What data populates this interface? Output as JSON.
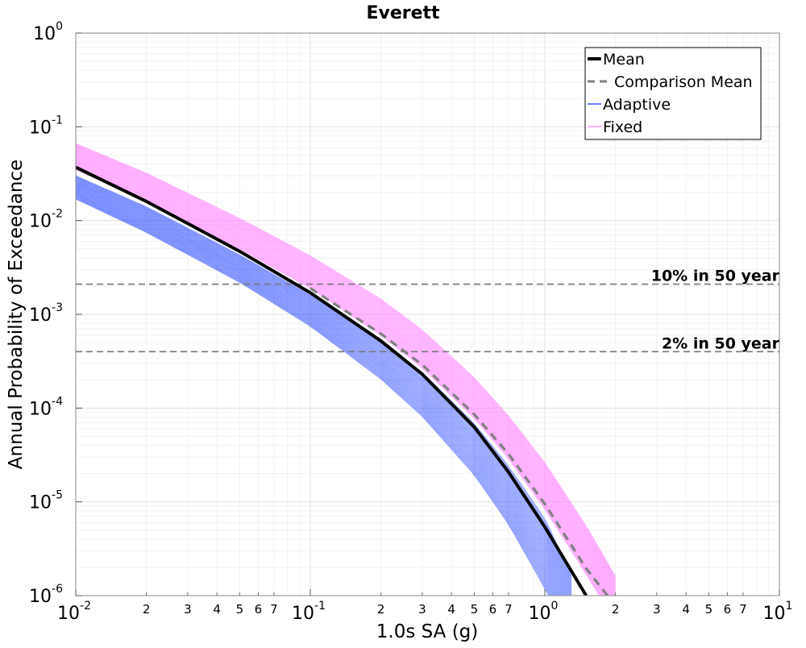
{
  "chart_data": {
    "type": "line",
    "title": "Everett",
    "xlabel": "1.0s SA (g)",
    "ylabel": "Annual Probability of Exceedance",
    "xscale": "log",
    "yscale": "log",
    "xlim": [
      0.01,
      10
    ],
    "ylim": [
      1e-06,
      1
    ],
    "grid": true,
    "legend_position": "top-right",
    "x_major_ticks": [
      {
        "base": "10",
        "exp": "-2"
      },
      {
        "base": "10",
        "exp": "-1"
      },
      {
        "base": "10",
        "exp": "0"
      },
      {
        "base": "10",
        "exp": "1"
      }
    ],
    "x_minor_tick_labels": [
      "2",
      "3",
      "4",
      "5",
      "6",
      "7"
    ],
    "y_major_ticks": [
      {
        "base": "10",
        "exp": "0"
      },
      {
        "base": "10",
        "exp": "-1"
      },
      {
        "base": "10",
        "exp": "-2"
      },
      {
        "base": "10",
        "exp": "-3"
      },
      {
        "base": "10",
        "exp": "-4"
      },
      {
        "base": "10",
        "exp": "-5"
      },
      {
        "base": "10",
        "exp": "-6"
      }
    ],
    "legend": [
      {
        "label": "Mean",
        "color": "#000000",
        "style": "solid-thick"
      },
      {
        "label": "Comparison Mean",
        "color": "#808080",
        "style": "dashed"
      },
      {
        "label": "Adaptive",
        "color": "#1a3cff",
        "style": "solid-thin"
      },
      {
        "label": "Fixed",
        "color": "#ff80ff",
        "style": "solid-thin"
      }
    ],
    "reference_lines": [
      {
        "label": "10% in 50 year",
        "y": 0.0021
      },
      {
        "label": "2% in 50 year",
        "y": 0.0004
      }
    ],
    "series": [
      {
        "name": "Mean",
        "x": [
          0.01,
          0.02,
          0.05,
          0.1,
          0.2,
          0.3,
          0.5,
          0.7,
          1.0,
          1.5
        ],
        "y": [
          0.037,
          0.016,
          0.0047,
          0.0017,
          0.00052,
          0.00023,
          6.28e-05,
          2.08e-05,
          5.4e-06,
          1e-06
        ]
      },
      {
        "name": "Comparison Mean",
        "x": [
          0.1,
          0.2,
          0.3,
          0.5,
          0.7,
          1.0,
          1.5,
          1.85
        ],
        "y": [
          0.0019,
          0.00062,
          0.00029,
          8.57e-05,
          3.24e-05,
          9.5e-06,
          1.95e-06,
          1e-06
        ]
      },
      {
        "name": "Adaptive",
        "x": [
          0.01,
          0.02,
          0.05,
          0.1,
          0.2,
          0.3,
          0.5,
          0.7,
          1.0,
          1.3
        ],
        "y_low": [
          0.017,
          0.0075,
          0.0022,
          0.00075,
          0.000205,
          8.2e-05,
          1.95e-05,
          5.8e-06,
          1.2e-06,
          3.1e-07
        ],
        "y_high": [
          0.03,
          0.014,
          0.0043,
          0.0016,
          0.00052,
          0.00024,
          6.8e-05,
          2.4e-05,
          6.6e-06,
          1.6e-06
        ]
      },
      {
        "name": "Fixed",
        "x": [
          0.01,
          0.02,
          0.05,
          0.1,
          0.2,
          0.3,
          0.5,
          0.7,
          1.0,
          1.5,
          2.0
        ],
        "y_low": [
          0.035,
          0.016,
          0.005,
          0.0019,
          0.0006,
          0.00027,
          7.8e-05,
          2.9e-05,
          8.4e-06,
          1.7e-06,
          5.2e-07
        ],
        "y_high": [
          0.066,
          0.032,
          0.0105,
          0.0042,
          0.00145,
          0.00068,
          0.00021,
          8.2e-05,
          2.6e-05,
          5.5e-06,
          1.6e-06
        ]
      }
    ]
  }
}
